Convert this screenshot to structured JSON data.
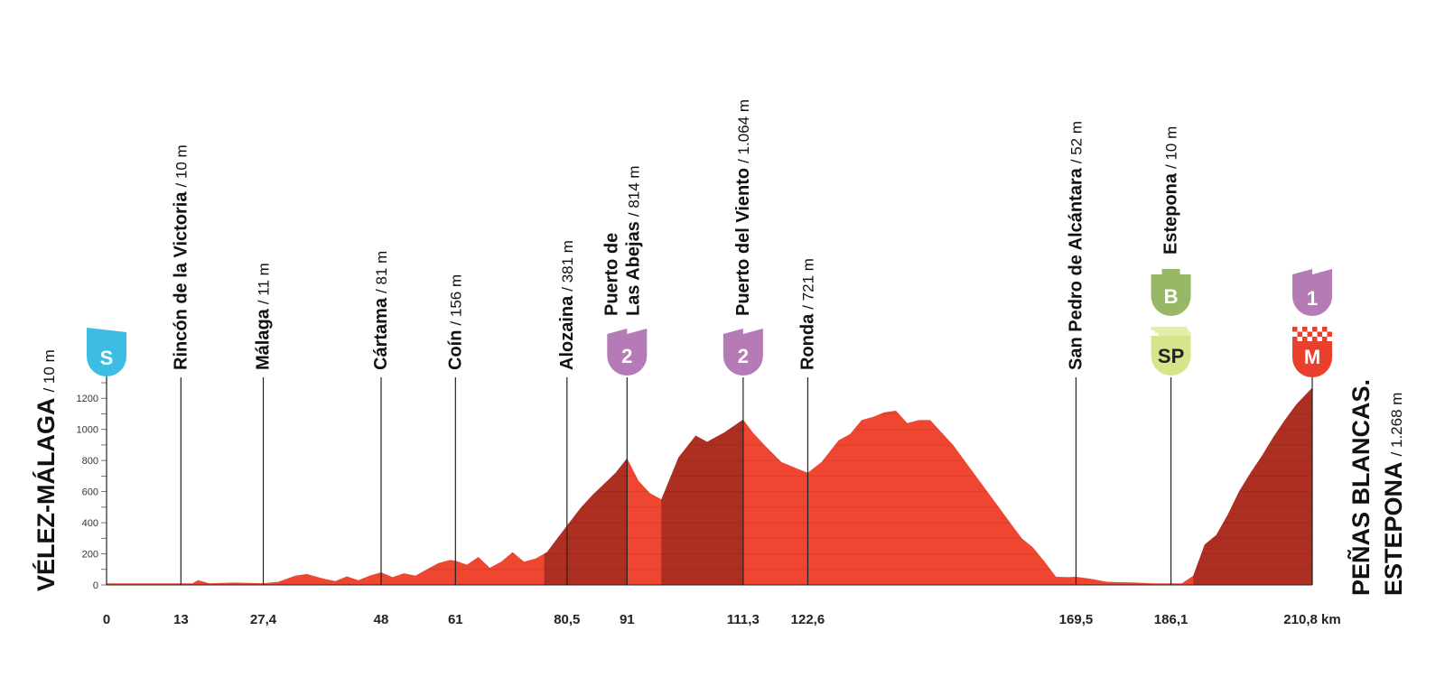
{
  "colors": {
    "profile_main": "#ee4630",
    "profile_climb": "#ac2f22",
    "start_badge": "#3dbde3",
    "cat2_badge": "#b47bb6",
    "cat1_badge": "#b47bb6",
    "bonus_badge": "#98b866",
    "sprint_badge": "#d7e48c",
    "finish_badge": "#e8402c"
  },
  "start": {
    "name": "VÉLEZ-MÁLAGA",
    "altitude": "/ 10 m",
    "badge": "S"
  },
  "finish": {
    "name_line1": "PEÑAS BLANCAS.",
    "name_line2": "ESTEPONA",
    "altitude": "/ 1.268 m",
    "badge_top": "1",
    "badge_bottom": "M"
  },
  "waypoints": [
    {
      "km": 13,
      "km_label": "13",
      "name": "Rincón de la Victoria",
      "altitude": "/ 10 m"
    },
    {
      "km": 27.4,
      "km_label": "27,4",
      "name": "Málaga",
      "altitude": "/ 11 m"
    },
    {
      "km": 48,
      "km_label": "48",
      "name": "Cártama",
      "altitude": "/ 81 m"
    },
    {
      "km": 61,
      "km_label": "61",
      "name": "Coín",
      "altitude": "/ 156 m"
    },
    {
      "km": 80.5,
      "km_label": "80,5",
      "name": "Alozaina",
      "altitude": "/ 381 m"
    },
    {
      "km": 91,
      "km_label": "91",
      "name": "Puerto de",
      "name2": "Las Abejas",
      "altitude": "/ 814 m",
      "badge": "2"
    },
    {
      "km": 111.3,
      "km_label": "111,3",
      "name": "Puerto del Viento",
      "altitude": "/ 1.064 m",
      "badge": "2"
    },
    {
      "km": 122.6,
      "km_label": "122,6",
      "name": "Ronda",
      "altitude": "/ 721 m"
    },
    {
      "km": 169.5,
      "km_label": "169,5",
      "name": "San Pedro de Alcántara",
      "altitude": "/ 52 m"
    },
    {
      "km": 186.1,
      "km_label": "186,1",
      "name": "Estepona",
      "altitude": "/ 10 m",
      "badge_top": "B",
      "badge_bottom": "SP"
    }
  ],
  "axis": {
    "start_km_label": "0",
    "end_km_label": "210,8 km"
  },
  "chart_data": {
    "type": "area",
    "xlabel": "",
    "ylabel": "",
    "xlim": [
      0,
      210.8
    ],
    "ylim": [
      0,
      1300
    ],
    "y_ticks": [
      0,
      200,
      400,
      600,
      800,
      1000,
      1200
    ],
    "y_tick_labels": [
      "0",
      "200",
      "400",
      "600",
      "800",
      "1000",
      "1200"
    ],
    "climb_segments": [
      [
        76.5,
        91
      ],
      [
        97,
        111.3
      ],
      [
        190,
        210.8
      ]
    ],
    "x": [
      0,
      13,
      15,
      16,
      18,
      22,
      27.4,
      30,
      33,
      35,
      38,
      40,
      42,
      44,
      46,
      48,
      50,
      52,
      54,
      56,
      58,
      60,
      61,
      63,
      65,
      67,
      69,
      71,
      73,
      75,
      77,
      78,
      80.5,
      83,
      85,
      87,
      89,
      91,
      93,
      95,
      97,
      100,
      103,
      105,
      106,
      108,
      111.3,
      113,
      115,
      118,
      120,
      122.6,
      125,
      128,
      130,
      132,
      134,
      136,
      138,
      140,
      142,
      144,
      146,
      148,
      150,
      152,
      154,
      156,
      158,
      160,
      162,
      164,
      166,
      168,
      169.5,
      172,
      175,
      180,
      183,
      186.1,
      188,
      190,
      192,
      194,
      196,
      198,
      200,
      202,
      204,
      206,
      208,
      210.8
    ],
    "y": [
      10,
      10,
      10,
      30,
      10,
      15,
      11,
      20,
      60,
      70,
      40,
      25,
      55,
      30,
      60,
      81,
      50,
      75,
      60,
      100,
      140,
      160,
      156,
      130,
      180,
      110,
      150,
      210,
      150,
      170,
      210,
      260,
      381,
      500,
      580,
      650,
      720,
      814,
      670,
      590,
      550,
      820,
      960,
      920,
      940,
      980,
      1064,
      980,
      900,
      790,
      760,
      721,
      790,
      930,
      970,
      1060,
      1080,
      1110,
      1120,
      1040,
      1060,
      1060,
      980,
      900,
      800,
      700,
      600,
      500,
      400,
      300,
      240,
      150,
      52,
      50,
      52,
      40,
      20,
      15,
      10,
      10,
      10,
      60,
      260,
      320,
      450,
      600,
      720,
      830,
      950,
      1060,
      1160,
      1268
    ]
  }
}
